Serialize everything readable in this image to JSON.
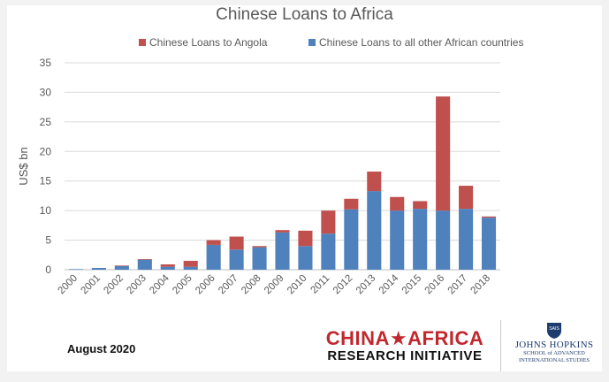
{
  "chart_data": {
    "type": "bar",
    "stacked": true,
    "title": "Chinese Loans to Africa",
    "ylabel": "US$ bn",
    "xlabel": "",
    "ylim": [
      0,
      35
    ],
    "yticks": [
      0,
      5,
      10,
      15,
      20,
      25,
      30,
      35
    ],
    "grid": true,
    "legend_position": "top",
    "categories": [
      "2000",
      "2001",
      "2002",
      "2003",
      "2004",
      "2005",
      "2006",
      "2007",
      "2008",
      "2009",
      "2010",
      "2011",
      "2012",
      "2013",
      "2014",
      "2015",
      "2016",
      "2017",
      "2018"
    ],
    "series": [
      {
        "name": "Chinese Loans to all other African countries",
        "color": "#4f81bd",
        "values": [
          0.1,
          0.3,
          0.6,
          1.7,
          0.5,
          0.5,
          4.2,
          3.4,
          3.8,
          6.3,
          4.0,
          6.1,
          10.2,
          13.3,
          10.0,
          10.3,
          10.0,
          10.3,
          8.8
        ]
      },
      {
        "name": "Chinese Loans to Angola",
        "color": "#c0504d",
        "values": [
          0.0,
          0.0,
          0.1,
          0.1,
          0.4,
          1.0,
          0.8,
          2.2,
          0.2,
          0.4,
          2.6,
          3.9,
          1.8,
          3.3,
          2.3,
          1.3,
          19.3,
          3.9,
          0.2
        ]
      }
    ],
    "legend_order": [
      1,
      0
    ]
  },
  "footer": {
    "date": "August 2020",
    "logo_cari_line1": "CHINA★AFRICA",
    "logo_cari_line2": "RESEARCH INITIATIVE",
    "logo_jhu_line1": "JOHNS HOPKINS",
    "logo_jhu_line2a": "SCHOOL of ADVANCED",
    "logo_jhu_line2b": "INTERNATIONAL STUDIES",
    "logo_jhu_shield_text": "SAIS"
  }
}
